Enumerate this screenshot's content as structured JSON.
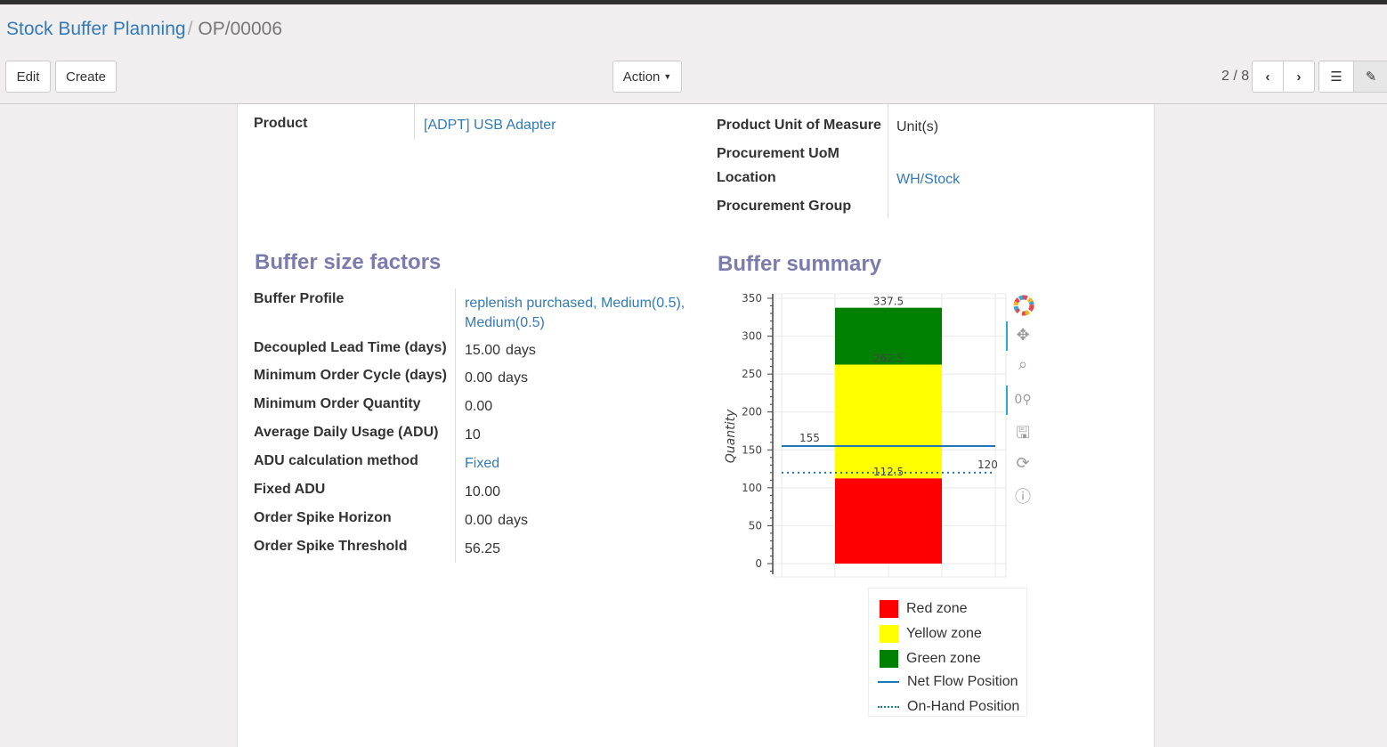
{
  "breadcrumb": {
    "parent": "Stock Buffer Planning",
    "current": "OP/00006"
  },
  "buttons": {
    "edit": "Edit",
    "create": "Create",
    "action": "Action"
  },
  "pager": {
    "value": "2 / 8"
  },
  "fields_top": {
    "product_label": "Product",
    "product_value": "[ADPT] USB Adapter",
    "uom_label": "Product Unit of Measure",
    "uom_value": "Unit(s)",
    "proc_uom_label": "Procurement UoM",
    "location_label": "Location",
    "location_value": "WH/Stock",
    "proc_group_label": "Procurement Group"
  },
  "buffer_factors": {
    "title": "Buffer size factors",
    "rows": [
      {
        "label": "Buffer Profile",
        "value": "replenish purchased, Medium(0.5),",
        "value2": "Medium(0.5)",
        "unit": ""
      },
      {
        "label": "Decoupled Lead Time (days)",
        "value": "15.00",
        "unit": "days"
      },
      {
        "label": "Minimum Order Cycle (days)",
        "value": "0.00",
        "unit": "days"
      },
      {
        "label": "Minimum Order Quantity",
        "value": "0.00",
        "unit": ""
      },
      {
        "label": "Average Daily Usage (ADU)",
        "value": "10",
        "unit": ""
      },
      {
        "label": "ADU calculation method",
        "value": "Fixed",
        "unit": ""
      },
      {
        "label": "Fixed ADU",
        "value": "10.00",
        "unit": ""
      },
      {
        "label": "Order Spike Horizon",
        "value": "0.00",
        "unit": "days"
      },
      {
        "label": "Order Spike Threshold",
        "value": "56.25",
        "unit": ""
      }
    ]
  },
  "buffer_summary": {
    "title": "Buffer summary"
  },
  "chart_data": {
    "type": "bar",
    "ylabel": "Quantity",
    "ylim": [
      0,
      350
    ],
    "yticks": [
      0,
      50,
      100,
      150,
      200,
      250,
      300,
      350
    ],
    "grid": true,
    "legend_placement": "bottom",
    "stack": [
      {
        "name": "Red zone",
        "from": 0,
        "to": 112.5,
        "color": "#ff0000"
      },
      {
        "name": "Yellow zone",
        "from": 112.5,
        "to": 262.5,
        "color": "#ffff00"
      },
      {
        "name": "Green zone",
        "from": 262.5,
        "to": 337.5,
        "color": "#008000"
      }
    ],
    "bar_labels": [
      "112.5",
      "262.5",
      "337.5"
    ],
    "lines": [
      {
        "name": "Net Flow Position",
        "value": 155,
        "label": "155",
        "style": "solid",
        "color": "#1f77b4"
      },
      {
        "name": "On-Hand Position",
        "value": 120,
        "label": "120",
        "style": "dotted",
        "color": "#1f77b4"
      }
    ]
  },
  "toolbar_icons": [
    "bokeh-logo-icon",
    "pan-icon",
    "box-zoom-icon",
    "wheel-zoom-icon",
    "save-icon",
    "reset-icon",
    "help-icon"
  ]
}
